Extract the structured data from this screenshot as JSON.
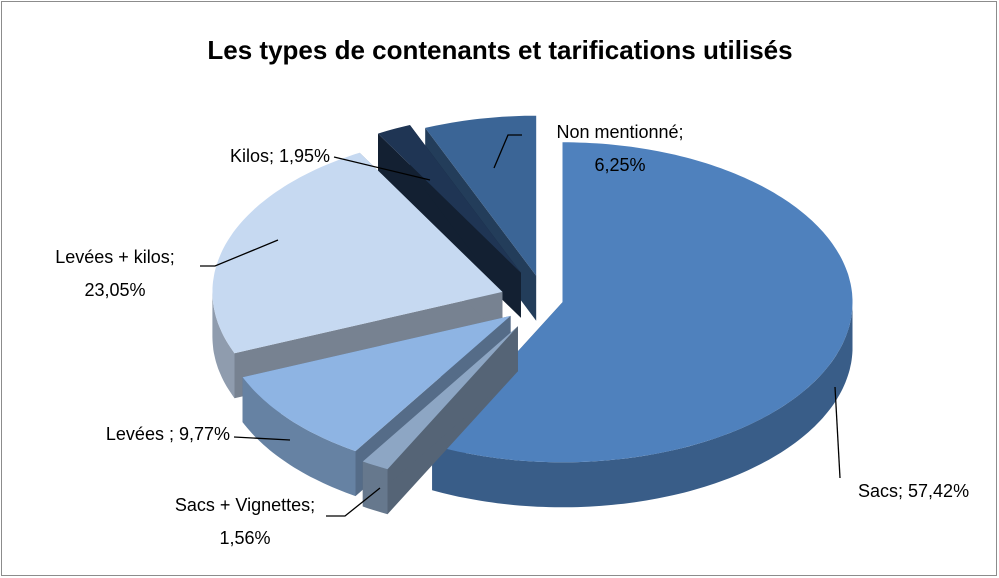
{
  "chart_data": {
    "type": "pie3d",
    "title": "Les types de contenants et tarifications utilisés",
    "values": [
      57.42,
      1.56,
      9.77,
      23.05,
      1.95,
      6.25
    ],
    "value_labels": [
      "Sacs; 57,42%",
      "Sacs + Vignettes;\n1,56%",
      "Levées ; 9,77%",
      "Levées + kilos;\n23,05%",
      "Kilos; 1,95%",
      "Non mentionné;\n6,25%"
    ],
    "colors": [
      "#4f81bd",
      "#8da6c4",
      "#8eb4e3",
      "#c6d9f1",
      "#1f3554",
      "#3b6596"
    ]
  }
}
